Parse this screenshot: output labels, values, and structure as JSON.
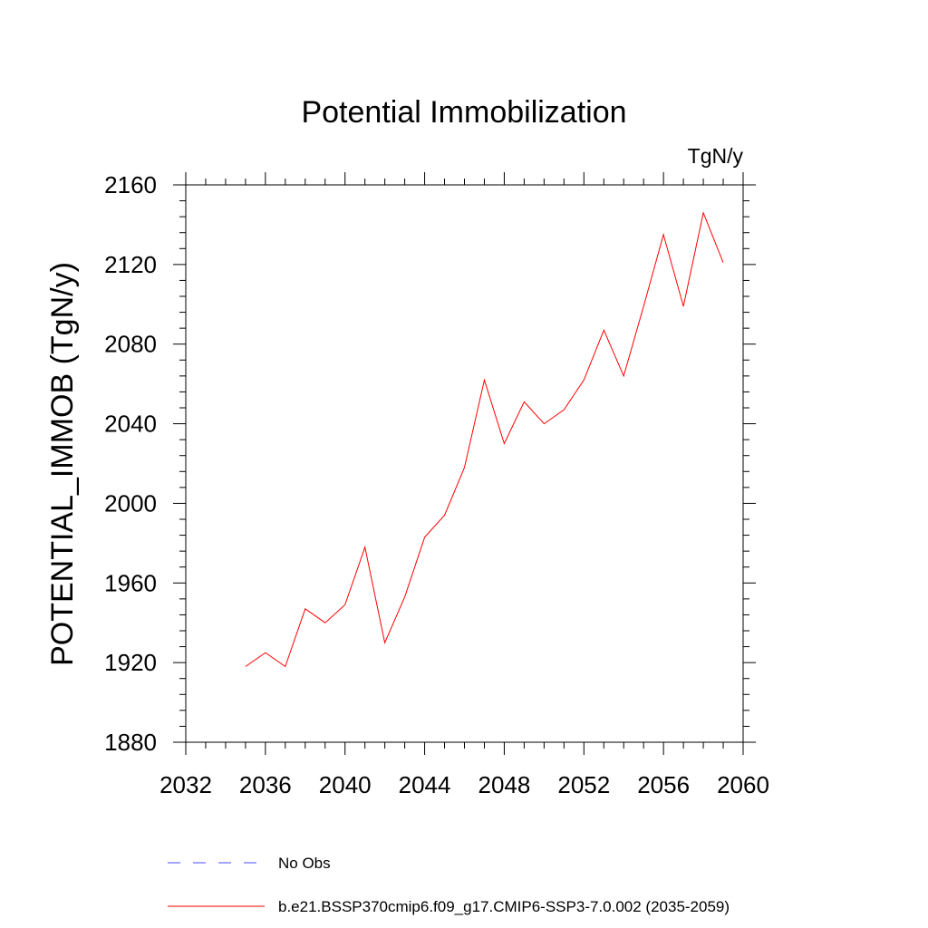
{
  "chart_data": {
    "type": "line",
    "title": "Potential Immobilization",
    "units_label": "TgN/y",
    "ylabel": "POTENTIAL_IMMOB  (TgN/y)",
    "xlabel": "",
    "xlim": [
      2032,
      2060
    ],
    "ylim": [
      1880,
      2160
    ],
    "x_ticks": [
      2032,
      2036,
      2040,
      2044,
      2048,
      2052,
      2056,
      2060
    ],
    "y_ticks": [
      1880,
      1920,
      1960,
      2000,
      2040,
      2080,
      2120,
      2160
    ],
    "x_minor_step": 1,
    "y_minor_step": 8,
    "grid": false,
    "legend_position": "bottom",
    "series": [
      {
        "name": "b.e21.BSSP370cmip6.f09_g17.CMIP6-SSP3-7.0.002 (2035-2059)",
        "color": "#ff0000",
        "dash": "solid",
        "x": [
          2035,
          2036,
          2037,
          2038,
          2039,
          2040,
          2041,
          2042,
          2043,
          2044,
          2045,
          2046,
          2047,
          2048,
          2049,
          2050,
          2051,
          2052,
          2053,
          2054,
          2055,
          2056,
          2057,
          2058,
          2059
        ],
        "y": [
          1918,
          1925,
          1918,
          1947,
          1940,
          1949,
          1978,
          1930,
          1953,
          1983,
          1994,
          2018,
          2062,
          2030,
          2051,
          2040,
          2047,
          2062,
          2087,
          2064,
          2099,
          2135,
          2099,
          2146,
          2121
        ]
      }
    ],
    "legend_entries": [
      {
        "label": "No Obs",
        "color": "#4b4bff",
        "dash": "dashed"
      },
      {
        "label": "b.e21.BSSP370cmip6.f09_g17.CMIP6-SSP3-7.0.002 (2035-2059)",
        "color": "#ff0000",
        "dash": "solid"
      }
    ]
  }
}
